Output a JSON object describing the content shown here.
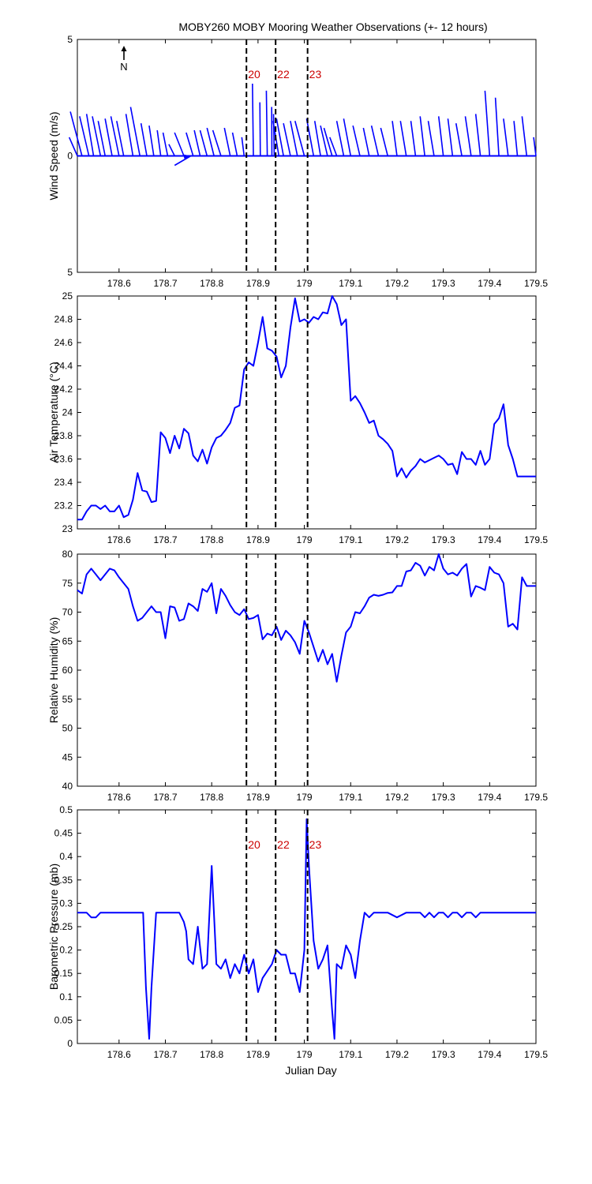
{
  "title": "MOBY260 MOBY Mooring Weather Observations (+- 12 hours)",
  "xlabel": "Julian Day",
  "north_label": "N",
  "colors": {
    "series": "#0000ff",
    "marker_label": "#cc0000",
    "axis": "#000000"
  },
  "event_markers": [
    {
      "x": 178.875,
      "label": "20"
    },
    {
      "x": 178.938,
      "label": "22"
    },
    {
      "x": 179.007,
      "label": "23"
    }
  ],
  "chart_data": [
    {
      "id": "wind",
      "type": "quiver",
      "ylabel": "Wind Speed (m/s)",
      "xlim": [
        178.51,
        179.5
      ],
      "ylim": [
        -5,
        5
      ],
      "xticks": [
        178.6,
        178.7,
        178.8,
        178.9,
        179,
        179.1,
        179.2,
        179.3,
        179.4,
        179.5
      ],
      "xticklabels": [
        "178.6",
        "178.7",
        "178.8",
        "178.9",
        "179",
        "179.1",
        "179.2",
        "179.3",
        "179.4",
        "179.5"
      ],
      "yticks": [
        -5,
        0,
        5
      ],
      "yticklabels": [
        "5",
        "0",
        "5"
      ],
      "show_event_labels": true,
      "x": [
        178.51,
        178.52,
        178.535,
        178.545,
        178.56,
        178.57,
        178.585,
        178.6,
        178.61,
        178.63,
        178.645,
        178.66,
        178.675,
        178.69,
        178.705,
        178.72,
        178.74,
        178.76,
        178.775,
        178.79,
        178.805,
        178.82,
        178.84,
        178.855,
        178.87,
        178.89,
        178.905,
        178.92,
        178.93,
        178.935,
        178.945,
        178.955,
        178.97,
        178.985,
        179.0,
        179.02,
        179.035,
        179.05,
        179.06,
        179.07,
        179.085,
        179.1,
        179.12,
        179.14,
        179.16,
        179.18,
        179.2,
        179.22,
        179.24,
        179.26,
        179.28,
        179.3,
        179.32,
        179.34,
        179.36,
        179.38,
        179.4,
        179.42,
        179.44,
        179.46,
        179.48,
        179.5
      ],
      "u": [
        -0.35,
        -0.5,
        -0.4,
        -0.3,
        -0.35,
        -0.3,
        -0.3,
        -0.35,
        -0.3,
        -0.3,
        -0.4,
        -0.25,
        -0.2,
        -0.15,
        -0.2,
        -0.25,
        -0.4,
        -0.3,
        -0.25,
        -0.3,
        -0.3,
        -0.35,
        -0.25,
        -0.2,
        -0.1,
        -0.04,
        -0.02,
        -0.04,
        -0.01,
        -0.03,
        -0.25,
        -0.3,
        -0.3,
        -0.3,
        -0.4,
        -0.3,
        -0.25,
        -0.3,
        -0.35,
        -0.3,
        -0.3,
        -0.3,
        -0.3,
        -0.25,
        -0.3,
        -0.3,
        -0.2,
        -0.25,
        -0.2,
        -0.2,
        -0.25,
        -0.2,
        -0.2,
        -0.25,
        -0.25,
        -0.2,
        -0.2,
        -0.15,
        -0.2,
        -0.15,
        -0.2,
        -0.1
      ],
      "v": [
        0.8,
        1.9,
        1.7,
        1.8,
        1.7,
        1.5,
        1.6,
        1.7,
        1.5,
        1.8,
        2.1,
        1.4,
        1.3,
        1.1,
        1.0,
        0.5,
        1.0,
        1.0,
        1.1,
        1.1,
        1.2,
        1.1,
        1.2,
        1.0,
        0.8,
        3.1,
        2.3,
        2.8,
        2.1,
        1.8,
        1.5,
        1.6,
        1.4,
        1.5,
        1.5,
        1.6,
        1.5,
        1.3,
        1.2,
        0.8,
        1.5,
        1.6,
        1.3,
        1.2,
        1.3,
        1.2,
        1.5,
        1.5,
        1.5,
        1.7,
        1.5,
        1.7,
        1.6,
        1.4,
        1.7,
        1.8,
        2.8,
        2.5,
        1.6,
        1.5,
        1.7,
        0.8
      ]
    },
    {
      "id": "air_temp",
      "type": "line",
      "ylabel": "Air Temperature (°C)",
      "xlim": [
        178.51,
        179.5
      ],
      "ylim": [
        23,
        25
      ],
      "xticks": [
        178.6,
        178.7,
        178.8,
        178.9,
        179,
        179.1,
        179.2,
        179.3,
        179.4,
        179.5
      ],
      "xticklabels": [
        "178.6",
        "178.7",
        "178.8",
        "178.9",
        "179",
        "179.1",
        "179.2",
        "179.3",
        "179.4",
        "179.5"
      ],
      "yticks": [
        23,
        23.2,
        23.4,
        23.6,
        23.8,
        24,
        24.2,
        24.4,
        24.6,
        24.8,
        25
      ],
      "yticklabels": [
        "23",
        "23.2",
        "23.4",
        "23.6",
        "23.8",
        "24",
        "24.2",
        "24.4",
        "24.6",
        "24.8",
        "25"
      ],
      "show_event_labels": false,
      "x": [
        178.51,
        178.52,
        178.53,
        178.54,
        178.55,
        178.56,
        178.57,
        178.58,
        178.59,
        178.6,
        178.61,
        178.62,
        178.63,
        178.64,
        178.65,
        178.66,
        178.67,
        178.68,
        178.69,
        178.7,
        178.71,
        178.72,
        178.73,
        178.74,
        178.75,
        178.76,
        178.77,
        178.78,
        178.79,
        178.8,
        178.81,
        178.82,
        178.83,
        178.84,
        178.85,
        178.86,
        178.87,
        178.88,
        178.89,
        178.9,
        178.91,
        178.92,
        178.93,
        178.94,
        178.95,
        178.96,
        178.97,
        178.98,
        178.99,
        179.0,
        179.01,
        179.02,
        179.03,
        179.04,
        179.05,
        179.06,
        179.07,
        179.08,
        179.09,
        179.1,
        179.11,
        179.12,
        179.13,
        179.14,
        179.15,
        179.16,
        179.17,
        179.18,
        179.19,
        179.2,
        179.21,
        179.22,
        179.23,
        179.24,
        179.25,
        179.26,
        179.27,
        179.28,
        179.29,
        179.3,
        179.31,
        179.32,
        179.33,
        179.34,
        179.35,
        179.36,
        179.37,
        179.38,
        179.39,
        179.4,
        179.41,
        179.42,
        179.43,
        179.44,
        179.45,
        179.46,
        179.47,
        179.48,
        179.49,
        179.5
      ],
      "y": [
        23.08,
        23.08,
        23.15,
        23.2,
        23.2,
        23.17,
        23.2,
        23.15,
        23.15,
        23.2,
        23.1,
        23.12,
        23.25,
        23.48,
        23.33,
        23.32,
        23.23,
        23.24,
        23.83,
        23.78,
        23.65,
        23.8,
        23.69,
        23.86,
        23.82,
        23.63,
        23.58,
        23.68,
        23.56,
        23.7,
        23.78,
        23.8,
        23.85,
        23.91,
        24.04,
        24.06,
        24.37,
        24.43,
        24.4,
        24.6,
        24.82,
        24.55,
        24.53,
        24.48,
        24.3,
        24.4,
        24.73,
        24.98,
        24.78,
        24.8,
        24.77,
        24.82,
        24.8,
        24.86,
        24.85,
        25.0,
        24.93,
        24.75,
        24.8,
        24.1,
        24.14,
        24.08,
        24.0,
        23.91,
        23.93,
        23.8,
        23.77,
        23.73,
        23.67,
        23.45,
        23.52,
        23.44,
        23.5,
        23.54,
        23.6,
        23.57,
        23.59,
        23.61,
        23.63,
        23.6,
        23.55,
        23.56,
        23.47,
        23.66,
        23.6,
        23.6,
        23.55,
        23.67,
        23.55,
        23.6,
        23.9,
        23.95,
        24.07,
        23.72,
        23.6,
        23.45,
        23.45,
        23.45,
        23.45,
        23.45
      ]
    },
    {
      "id": "humidity",
      "type": "line",
      "ylabel": "Relative Humidity (%)",
      "xlim": [
        178.51,
        179.5
      ],
      "ylim": [
        40,
        80
      ],
      "xticks": [
        178.6,
        178.7,
        178.8,
        178.9,
        179,
        179.1,
        179.2,
        179.3,
        179.4,
        179.5
      ],
      "xticklabels": [
        "178.6",
        "178.7",
        "178.8",
        "178.9",
        "179",
        "179.1",
        "179.2",
        "179.3",
        "179.4",
        "179.5"
      ],
      "yticks": [
        40,
        45,
        50,
        55,
        60,
        65,
        70,
        75,
        80
      ],
      "yticklabels": [
        "40",
        "45",
        "50",
        "55",
        "60",
        "65",
        "70",
        "75",
        "80"
      ],
      "show_event_labels": false,
      "x": [
        178.51,
        178.52,
        178.53,
        178.54,
        178.55,
        178.56,
        178.57,
        178.58,
        178.59,
        178.6,
        178.61,
        178.62,
        178.63,
        178.64,
        178.65,
        178.66,
        178.67,
        178.68,
        178.69,
        178.7,
        178.71,
        178.72,
        178.73,
        178.74,
        178.75,
        178.76,
        178.77,
        178.78,
        178.79,
        178.8,
        178.81,
        178.82,
        178.83,
        178.84,
        178.85,
        178.86,
        178.87,
        178.88,
        178.89,
        178.9,
        178.91,
        178.92,
        178.93,
        178.94,
        178.95,
        178.96,
        178.97,
        178.98,
        178.99,
        179.0,
        179.01,
        179.02,
        179.03,
        179.04,
        179.05,
        179.06,
        179.07,
        179.08,
        179.09,
        179.1,
        179.11,
        179.12,
        179.13,
        179.14,
        179.15,
        179.16,
        179.17,
        179.18,
        179.19,
        179.2,
        179.21,
        179.22,
        179.23,
        179.24,
        179.25,
        179.26,
        179.27,
        179.28,
        179.29,
        179.3,
        179.31,
        179.32,
        179.33,
        179.34,
        179.35,
        179.36,
        179.37,
        179.38,
        179.39,
        179.4,
        179.41,
        179.42,
        179.43,
        179.44,
        179.45,
        179.46,
        179.47,
        179.48,
        179.49,
        179.5
      ],
      "y": [
        73.8,
        73.2,
        76.5,
        77.5,
        76.5,
        75.5,
        76.5,
        77.5,
        77.2,
        76,
        75,
        74,
        71,
        68.5,
        69,
        70,
        71,
        70,
        70,
        65.5,
        71,
        70.8,
        68.5,
        68.8,
        71.5,
        71,
        70.2,
        74,
        73.5,
        75,
        69.8,
        74,
        72.8,
        71.2,
        70,
        69.5,
        70.5,
        68.8,
        69,
        69.5,
        65.3,
        66.3,
        66,
        67.5,
        65.2,
        66.8,
        66,
        64.8,
        62.8,
        68.5,
        66.5,
        64,
        61.5,
        63.5,
        61,
        62.8,
        58,
        62.5,
        66.5,
        67.5,
        70,
        69.8,
        71,
        72.5,
        73,
        72.8,
        73,
        73.3,
        73.4,
        74.5,
        74.5,
        77,
        77.2,
        78.5,
        78,
        76.3,
        77.8,
        77.2,
        80,
        77.5,
        76.5,
        76.8,
        76.3,
        77.5,
        78.3,
        72.7,
        74.5,
        74.2,
        73.8,
        77.8,
        76.8,
        76.5,
        75,
        67.5,
        68,
        67,
        76,
        74.5,
        74.5,
        74.5
      ]
    },
    {
      "id": "pressure",
      "type": "line",
      "ylabel": "Barometric Pressure (mb)",
      "xlim": [
        178.51,
        179.5
      ],
      "ylim": [
        0,
        0.5
      ],
      "xticks": [
        178.6,
        178.7,
        178.8,
        178.9,
        179,
        179.1,
        179.2,
        179.3,
        179.4,
        179.5
      ],
      "xticklabels": [
        "178.6",
        "178.7",
        "178.8",
        "178.9",
        "179",
        "179.1",
        "179.2",
        "179.3",
        "179.4",
        "179.5"
      ],
      "yticks": [
        0,
        0.05,
        0.1,
        0.15,
        0.2,
        0.25,
        0.3,
        0.35,
        0.4,
        0.45,
        0.5
      ],
      "yticklabels": [
        "0",
        "0.05",
        "0.1",
        "0.15",
        "0.2",
        "0.25",
        "0.3",
        "0.35",
        "0.4",
        "0.45",
        "0.5"
      ],
      "show_event_labels": true,
      "x": [
        178.51,
        178.53,
        178.54,
        178.55,
        178.56,
        178.58,
        178.6,
        178.62,
        178.64,
        178.645,
        178.652,
        178.658,
        178.665,
        178.67,
        178.68,
        178.7,
        178.72,
        178.73,
        178.74,
        178.745,
        178.75,
        178.76,
        178.77,
        178.78,
        178.79,
        178.8,
        178.81,
        178.82,
        178.83,
        178.84,
        178.85,
        178.86,
        178.87,
        178.88,
        178.89,
        178.9,
        178.91,
        178.93,
        178.94,
        178.95,
        178.96,
        178.97,
        178.98,
        178.99,
        179.0,
        179.005,
        179.01,
        179.02,
        179.03,
        179.04,
        179.05,
        179.06,
        179.065,
        179.07,
        179.08,
        179.09,
        179.1,
        179.11,
        179.12,
        179.13,
        179.14,
        179.15,
        179.16,
        179.18,
        179.2,
        179.22,
        179.24,
        179.25,
        179.26,
        179.27,
        179.28,
        179.29,
        179.3,
        179.31,
        179.32,
        179.33,
        179.34,
        179.35,
        179.36,
        179.37,
        179.38,
        179.39,
        179.4,
        179.42,
        179.45,
        179.48,
        179.5
      ],
      "y": [
        0.28,
        0.28,
        0.27,
        0.27,
        0.28,
        0.28,
        0.28,
        0.28,
        0.28,
        0.28,
        0.28,
        0.12,
        0.01,
        0.12,
        0.28,
        0.28,
        0.28,
        0.28,
        0.26,
        0.24,
        0.18,
        0.17,
        0.25,
        0.16,
        0.17,
        0.38,
        0.17,
        0.16,
        0.18,
        0.14,
        0.17,
        0.15,
        0.19,
        0.15,
        0.18,
        0.11,
        0.14,
        0.17,
        0.2,
        0.19,
        0.19,
        0.15,
        0.15,
        0.11,
        0.2,
        0.48,
        0.38,
        0.22,
        0.16,
        0.18,
        0.21,
        0.07,
        0.01,
        0.17,
        0.16,
        0.21,
        0.19,
        0.14,
        0.22,
        0.28,
        0.27,
        0.28,
        0.28,
        0.28,
        0.27,
        0.28,
        0.28,
        0.28,
        0.27,
        0.28,
        0.27,
        0.28,
        0.28,
        0.27,
        0.28,
        0.28,
        0.27,
        0.28,
        0.28,
        0.27,
        0.28,
        0.28,
        0.28,
        0.28,
        0.28,
        0.28,
        0.28
      ]
    }
  ]
}
